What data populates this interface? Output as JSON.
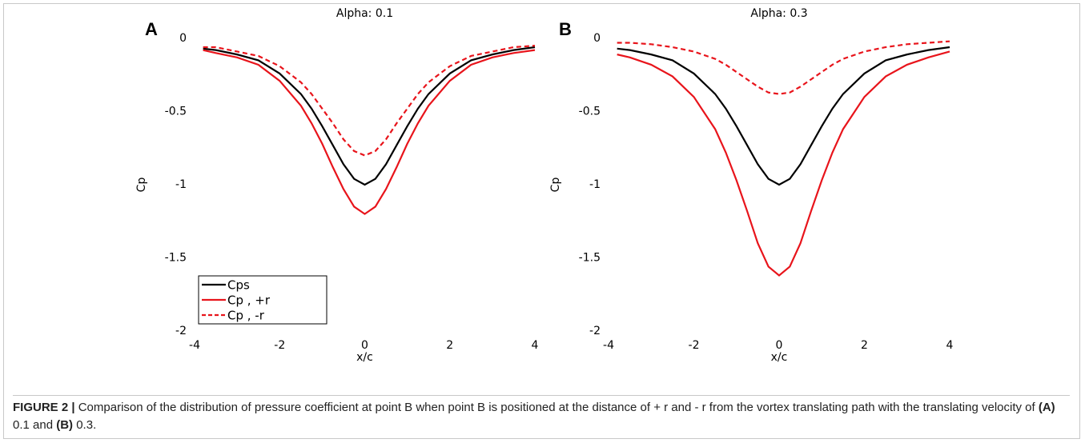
{
  "chart_data": [
    {
      "type": "line",
      "panel_label": "A",
      "title": "Alpha: 0.1",
      "xlabel": "x/c",
      "ylabel": "Cp",
      "x": [
        -3.8,
        -3.5,
        -3,
        -2.5,
        -2,
        -1.5,
        -1.25,
        -1,
        -0.75,
        -0.5,
        -0.25,
        0,
        0.25,
        0.5,
        0.75,
        1,
        1.25,
        1.5,
        2,
        2.5,
        3,
        3.5,
        4
      ],
      "series": [
        {
          "name": "Cps",
          "color": "#000000",
          "dashed": false,
          "values": [
            -0.07,
            -0.08,
            -0.11,
            -0.15,
            -0.24,
            -0.38,
            -0.48,
            -0.6,
            -0.73,
            -0.86,
            -0.96,
            -1,
            -0.96,
            -0.86,
            -0.73,
            -0.6,
            -0.48,
            -0.38,
            -0.24,
            -0.15,
            -0.11,
            -0.08,
            -0.06
          ]
        },
        {
          "name": "Cp , +r",
          "color": "#e8141b",
          "dashed": false,
          "values": [
            -0.08,
            -0.1,
            -0.13,
            -0.18,
            -0.29,
            -0.46,
            -0.58,
            -0.72,
            -0.88,
            -1.03,
            -1.15,
            -1.2,
            -1.15,
            -1.03,
            -0.88,
            -0.72,
            -0.58,
            -0.46,
            -0.29,
            -0.18,
            -0.13,
            -0.1,
            -0.08
          ]
        },
        {
          "name": "Cp , -r",
          "color": "#e8141b",
          "dashed": true,
          "values": [
            -0.06,
            -0.06,
            -0.09,
            -0.12,
            -0.19,
            -0.3,
            -0.38,
            -0.48,
            -0.58,
            -0.69,
            -0.77,
            -0.8,
            -0.77,
            -0.69,
            -0.58,
            -0.48,
            -0.38,
            -0.3,
            -0.19,
            -0.12,
            -0.09,
            -0.06,
            -0.05
          ]
        }
      ],
      "xlim": [
        -4,
        4
      ],
      "xticks": [
        -4,
        -2,
        0,
        2,
        4
      ],
      "ylim": [
        -2,
        0
      ],
      "yticks": [
        0,
        -0.5,
        -1,
        -1.5,
        -2
      ],
      "legend": "lower left"
    },
    {
      "type": "line",
      "panel_label": "B",
      "title": "Alpha: 0.3",
      "xlabel": "x/c",
      "ylabel": "Cp",
      "x": [
        -3.8,
        -3.5,
        -3,
        -2.5,
        -2,
        -1.5,
        -1.25,
        -1,
        -0.75,
        -0.5,
        -0.25,
        0,
        0.25,
        0.5,
        0.75,
        1,
        1.25,
        1.5,
        2,
        2.5,
        3,
        3.5,
        4
      ],
      "series": [
        {
          "name": "Cps",
          "color": "#000000",
          "dashed": false,
          "values": [
            -0.07,
            -0.08,
            -0.11,
            -0.15,
            -0.24,
            -0.38,
            -0.48,
            -0.6,
            -0.73,
            -0.86,
            -0.96,
            -1,
            -0.96,
            -0.86,
            -0.73,
            -0.6,
            -0.48,
            -0.38,
            -0.24,
            -0.15,
            -0.11,
            -0.08,
            -0.06
          ]
        },
        {
          "name": "Cp , +r",
          "color": "#e8141b",
          "dashed": false,
          "values": [
            -0.11,
            -0.13,
            -0.18,
            -0.26,
            -0.4,
            -0.62,
            -0.78,
            -0.97,
            -1.18,
            -1.4,
            -1.56,
            -1.62,
            -1.56,
            -1.4,
            -1.18,
            -0.97,
            -0.78,
            -0.62,
            -0.4,
            -0.26,
            -0.18,
            -0.13,
            -0.09
          ]
        },
        {
          "name": "Cp , -r",
          "color": "#e8141b",
          "dashed": true,
          "values": [
            -0.03,
            -0.03,
            -0.04,
            -0.06,
            -0.09,
            -0.14,
            -0.18,
            -0.23,
            -0.28,
            -0.33,
            -0.37,
            -0.38,
            -0.37,
            -0.33,
            -0.28,
            -0.23,
            -0.18,
            -0.14,
            -0.09,
            -0.06,
            -0.04,
            -0.03,
            -0.02
          ]
        }
      ],
      "xlim": [
        -4,
        4
      ],
      "xticks": [
        -4,
        -2,
        0,
        2,
        4
      ],
      "ylim": [
        -2,
        0
      ],
      "yticks": [
        0,
        -0.5,
        -1,
        -1.5,
        -2
      ]
    }
  ],
  "caption": {
    "label": "FIGURE 2 |",
    "text1": "Comparison of the distribution of pressure coefficient at point B when point B is positioned at the distance of + r and - r from the vortex translating path with the translating velocity of",
    "a": "(A)",
    "text2": "0.1 and",
    "b": "(B)",
    "text3": "0.3."
  }
}
